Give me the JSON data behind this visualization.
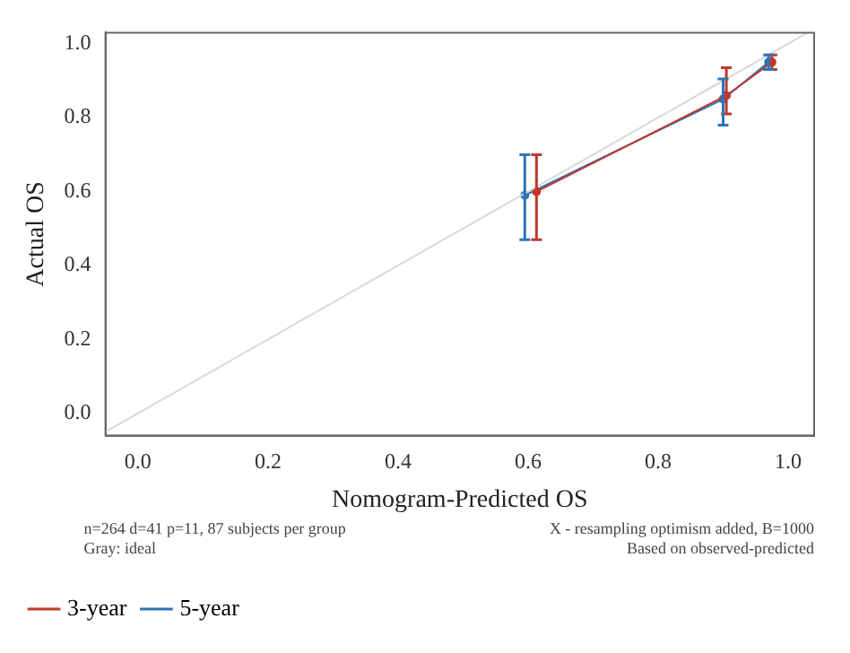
{
  "chart_data": {
    "type": "line",
    "xlabel": "Nomogram-Predicted OS",
    "ylabel": "Actual OS",
    "xlim": [
      -0.05,
      1.04
    ],
    "ylim": [
      -0.06,
      1.03
    ],
    "xticks": [
      {
        "value": 0,
        "label": "0.0"
      },
      {
        "value": 0.2,
        "label": "0.2"
      },
      {
        "value": 0.4,
        "label": "0.4"
      },
      {
        "value": 0.6,
        "label": "0.6"
      },
      {
        "value": 0.8,
        "label": "0.8"
      },
      {
        "value": 1,
        "label": "1.0"
      }
    ],
    "yticks": [
      {
        "value": 0,
        "label": "0.0"
      },
      0.2,
      0.4,
      0.6,
      0.8,
      {
        "value": 1,
        "label": "1.0"
      }
    ],
    "series": [
      {
        "color": "#d9d9d9",
        "x": [
          -0.05,
          1.03
        ],
        "values": [
          -0.05,
          1.03
        ],
        "marker": "none"
      },
      {
        "name": "3-year",
        "color": "#c0392b",
        "x": [
          0.613,
          0.905,
          0.975
        ],
        "values": [
          0.6,
          0.86,
          0.95
        ],
        "errors": [
          [
            0.47,
            0.7
          ],
          [
            0.81,
            0.935
          ],
          [
            0.93,
            0.97
          ]
        ],
        "marker": "circle"
      },
      {
        "name": "5-year",
        "color": "#2e75b6",
        "x": [
          0.595,
          0.9,
          0.97
        ],
        "values": [
          0.59,
          0.85,
          0.95
        ],
        "errors": [
          [
            0.47,
            0.7
          ],
          [
            0.78,
            0.905
          ],
          [
            0.93,
            0.97
          ]
        ],
        "marker": "circle"
      }
    ],
    "annotations": [
      "n=264 d=41 p=11, 87 subjects per group",
      "Gray: ideal",
      "X - resampling optimism added, B=1000",
      "Based on observed-predicted"
    ],
    "grid": false,
    "legend": "bottom"
  }
}
